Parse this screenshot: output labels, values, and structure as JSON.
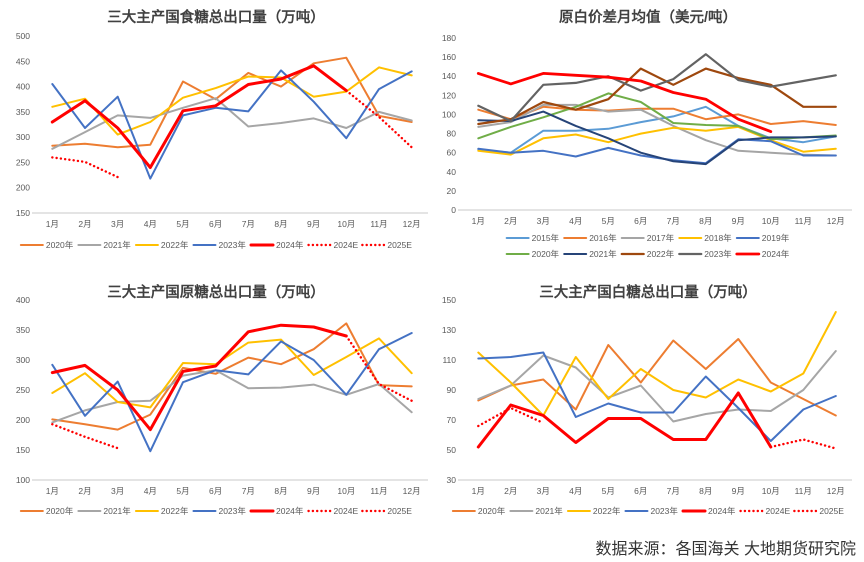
{
  "page": {
    "source_note": "数据来源：各国海关  大地期货研究院"
  },
  "chart_data": [
    {
      "id": "total-sugar-exports",
      "type": "line",
      "title": "三大主产国食糖总出口量（万吨）",
      "categories": [
        "1月",
        "2月",
        "3月",
        "4月",
        "5月",
        "6月",
        "7月",
        "8月",
        "9月",
        "10月",
        "11月",
        "12月"
      ],
      "ylim": [
        150,
        500
      ],
      "ytick_step": 50,
      "grid": false,
      "legend_position": "bottom",
      "legend_rows": 1,
      "series": [
        {
          "name": "2020年",
          "color": "#ED7D31",
          "style": "solid",
          "width": 2,
          "values": [
            283,
            287,
            280,
            285,
            410,
            375,
            427,
            400,
            446,
            457,
            342,
            330
          ]
        },
        {
          "name": "2021年",
          "color": "#A6A6A6",
          "style": "solid",
          "width": 2,
          "values": [
            277,
            310,
            343,
            338,
            358,
            377,
            321,
            328,
            337,
            318,
            350,
            333
          ]
        },
        {
          "name": "2022年",
          "color": "#FFC000",
          "style": "solid",
          "width": 2,
          "values": [
            360,
            376,
            305,
            330,
            378,
            397,
            420,
            418,
            380,
            390,
            438,
            422
          ]
        },
        {
          "name": "2023年",
          "color": "#4472C4",
          "style": "solid",
          "width": 2,
          "values": [
            405,
            318,
            380,
            218,
            343,
            358,
            351,
            432,
            370,
            298,
            395,
            430
          ]
        },
        {
          "name": "2024年",
          "color": "#FF0000",
          "style": "solid",
          "width": 3,
          "values": [
            330,
            372,
            318,
            240,
            352,
            362,
            404,
            415,
            441,
            392,
            null,
            null
          ]
        },
        {
          "name": "2024E",
          "color": "#FF0000",
          "style": "dotted",
          "width": 2.4,
          "values": [
            null,
            null,
            null,
            null,
            null,
            null,
            null,
            null,
            null,
            392,
            340,
            280
          ]
        },
        {
          "name": "2025E",
          "color": "#FF0000",
          "style": "dotted",
          "width": 2.4,
          "values": [
            260,
            251,
            221,
            null,
            null,
            null,
            null,
            null,
            null,
            null,
            null,
            null
          ]
        }
      ]
    },
    {
      "id": "raw-white-spread",
      "type": "line",
      "title": "原白价差月均值（美元/吨）",
      "categories": [
        "1月",
        "2月",
        "3月",
        "4月",
        "5月",
        "6月",
        "7月",
        "8月",
        "9月",
        "10月",
        "11月",
        "12月"
      ],
      "ylim": [
        0,
        180
      ],
      "ytick_step": 20,
      "grid": false,
      "legend_position": "bottom",
      "legend_rows": 2,
      "series": [
        {
          "name": "2015年",
          "color": "#5B9BD5",
          "style": "solid",
          "width": 2,
          "values": [
            63,
            60,
            83,
            83,
            85,
            92,
            98,
            108,
            88,
            75,
            71,
            77
          ]
        },
        {
          "name": "2016年",
          "color": "#ED7D31",
          "style": "solid",
          "width": 2,
          "values": [
            105,
            95,
            108,
            105,
            104,
            106,
            106,
            95,
            100,
            90,
            93,
            89
          ]
        },
        {
          "name": "2017年",
          "color": "#A5A5A5",
          "style": "solid",
          "width": 2,
          "values": [
            87,
            92,
            110,
            110,
            103,
            105,
            88,
            73,
            62,
            60,
            58,
            57
          ]
        },
        {
          "name": "2018年",
          "color": "#FFC000",
          "style": "solid",
          "width": 2,
          "values": [
            62,
            58,
            75,
            79,
            71,
            80,
            86,
            83,
            87,
            73,
            61,
            64
          ]
        },
        {
          "name": "2019年",
          "color": "#4472C4",
          "style": "solid",
          "width": 2,
          "values": [
            64,
            60,
            62,
            56,
            65,
            57,
            52,
            49,
            74,
            72,
            57,
            57
          ]
        },
        {
          "name": "2020年",
          "color": "#70AD47",
          "style": "solid",
          "width": 2,
          "values": [
            75,
            87,
            97,
            108,
            122,
            113,
            91,
            89,
            88,
            74,
            76,
            78
          ]
        },
        {
          "name": "2021年",
          "color": "#264478",
          "style": "solid",
          "width": 2,
          "values": [
            94,
            93,
            103,
            88,
            75,
            60,
            51,
            48,
            73,
            76,
            76,
            77
          ]
        },
        {
          "name": "2022年",
          "color": "#9E480E",
          "style": "solid",
          "width": 2.2,
          "values": [
            90,
            95,
            113,
            105,
            116,
            148,
            131,
            148,
            138,
            131,
            108,
            108
          ]
        },
        {
          "name": "2023年",
          "color": "#636363",
          "style": "solid",
          "width": 2.2,
          "values": [
            109,
            93,
            131,
            133,
            140,
            125,
            137,
            163,
            136,
            129,
            135,
            141
          ]
        },
        {
          "name": "2024年",
          "color": "#FF0000",
          "style": "solid",
          "width": 2.8,
          "values": [
            143,
            132,
            143,
            141,
            139,
            135,
            123,
            116,
            95,
            82,
            null,
            null
          ]
        }
      ]
    },
    {
      "id": "raw-sugar-exports",
      "type": "line",
      "title": "三大主产国原糖总出口量（万吨）",
      "categories": [
        "1月",
        "2月",
        "3月",
        "4月",
        "5月",
        "6月",
        "7月",
        "8月",
        "9月",
        "10月",
        "11月",
        "12月"
      ],
      "ylim": [
        100,
        400
      ],
      "ytick_step": 50,
      "grid": false,
      "legend_position": "bottom",
      "legend_rows": 1,
      "series": [
        {
          "name": "2020年",
          "color": "#ED7D31",
          "style": "solid",
          "width": 2,
          "values": [
            201,
            193,
            184,
            209,
            287,
            277,
            304,
            293,
            318,
            361,
            258,
            256
          ]
        },
        {
          "name": "2021年",
          "color": "#A6A6A6",
          "style": "solid",
          "width": 2,
          "values": [
            196,
            216,
            230,
            232,
            274,
            283,
            253,
            254,
            259,
            242,
            260,
            213
          ]
        },
        {
          "name": "2022年",
          "color": "#FFC000",
          "style": "solid",
          "width": 2,
          "values": [
            245,
            278,
            230,
            221,
            295,
            293,
            329,
            334,
            275,
            305,
            336,
            278
          ]
        },
        {
          "name": "2023年",
          "color": "#4472C4",
          "style": "solid",
          "width": 2,
          "values": [
            292,
            207,
            264,
            148,
            263,
            283,
            276,
            331,
            300,
            242,
            318,
            345
          ]
        },
        {
          "name": "2024年",
          "color": "#FF0000",
          "style": "solid",
          "width": 3,
          "values": [
            279,
            291,
            250,
            184,
            281,
            290,
            347,
            358,
            355,
            340,
            null,
            null
          ]
        },
        {
          "name": "2024E",
          "color": "#FF0000",
          "style": "dotted",
          "width": 2.4,
          "values": [
            null,
            null,
            null,
            null,
            null,
            null,
            null,
            null,
            null,
            340,
            260,
            232
          ]
        },
        {
          "name": "2025E",
          "color": "#FF0000",
          "style": "dotted",
          "width": 2.4,
          "values": [
            193,
            172,
            153,
            null,
            null,
            null,
            null,
            null,
            null,
            null,
            null,
            null
          ]
        }
      ]
    },
    {
      "id": "white-sugar-exports",
      "type": "line",
      "title": "三大主产国白糖总出口量（万吨）",
      "categories": [
        "1月",
        "2月",
        "3月",
        "4月",
        "5月",
        "6月",
        "7月",
        "8月",
        "9月",
        "10月",
        "11月",
        "12月"
      ],
      "ylim": [
        30,
        150
      ],
      "ytick_step": 20,
      "grid": false,
      "legend_position": "bottom",
      "legend_rows": 1,
      "series": [
        {
          "name": "2020年",
          "color": "#ED7D31",
          "style": "solid",
          "width": 2,
          "values": [
            83,
            93,
            97,
            77,
            120,
            95,
            123,
            104,
            124,
            95,
            84,
            73
          ]
        },
        {
          "name": "2021年",
          "color": "#A6A6A6",
          "style": "solid",
          "width": 2,
          "values": [
            84,
            93,
            113,
            105,
            85,
            93,
            69,
            74,
            77,
            76,
            90,
            116
          ]
        },
        {
          "name": "2022年",
          "color": "#FFC000",
          "style": "solid",
          "width": 2,
          "values": [
            115,
            95,
            73,
            112,
            84,
            104,
            90,
            85,
            97,
            89,
            101,
            142
          ]
        },
        {
          "name": "2023年",
          "color": "#4472C4",
          "style": "solid",
          "width": 2,
          "values": [
            111,
            112,
            115,
            72,
            81,
            75,
            75,
            99,
            78,
            56,
            77,
            86
          ]
        },
        {
          "name": "2024年",
          "color": "#FF0000",
          "style": "solid",
          "width": 3,
          "values": [
            52,
            80,
            73,
            55,
            71,
            71,
            57,
            57,
            88,
            52,
            null,
            null
          ]
        },
        {
          "name": "2024E",
          "color": "#FF0000",
          "style": "dotted",
          "width": 2.4,
          "values": [
            null,
            null,
            null,
            null,
            null,
            null,
            null,
            null,
            null,
            52,
            57,
            51
          ]
        },
        {
          "name": "2025E",
          "color": "#FF0000",
          "style": "dotted",
          "width": 2.4,
          "values": [
            66,
            78,
            68,
            null,
            null,
            null,
            null,
            null,
            null,
            null,
            null,
            null
          ]
        }
      ]
    }
  ]
}
